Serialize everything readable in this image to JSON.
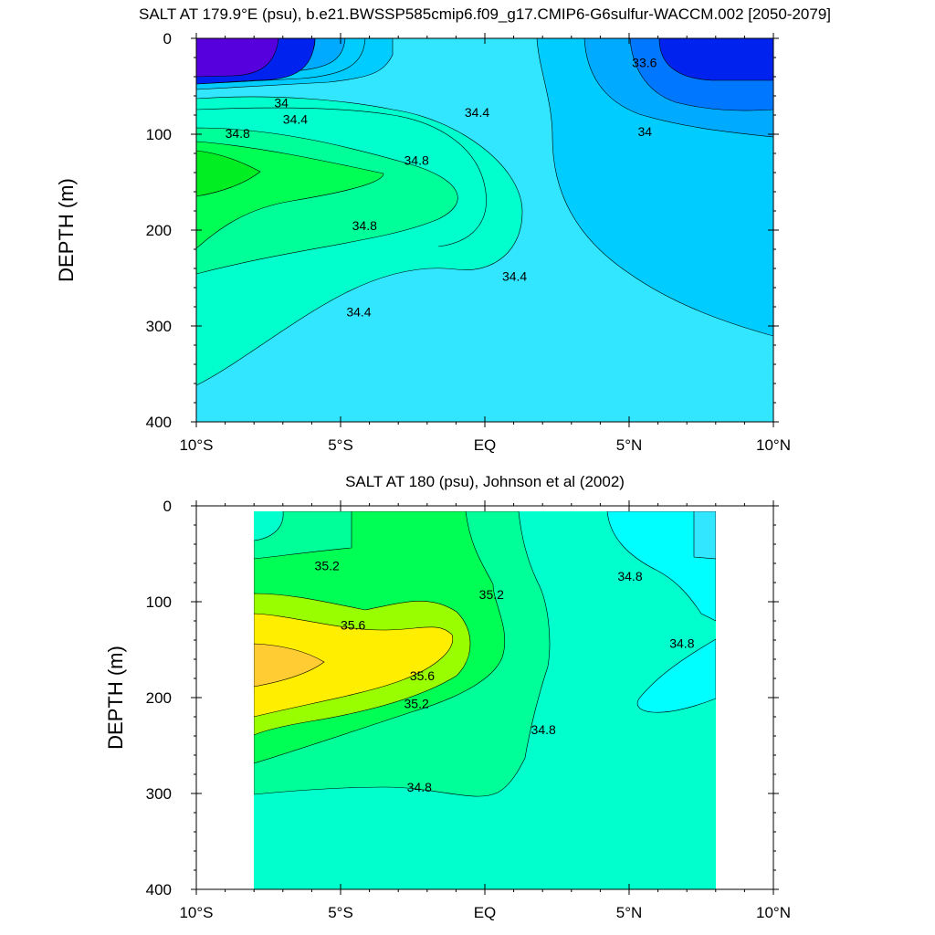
{
  "chart_data": [
    {
      "type": "contour",
      "title": "SALT AT 179.9°E (psu), b.e21.BWSSP585cmip6.f09_g17.CMIP6-G6sulfur-WACCM.002 [2050-2079]",
      "xlabel": "",
      "ylabel": "DEPTH (m)",
      "xlim": [
        -10,
        10
      ],
      "ylim": [
        400,
        0
      ],
      "x_ticks": [
        {
          "value": -10,
          "label": "10°S"
        },
        {
          "value": -5,
          "label": "5°S"
        },
        {
          "value": 0,
          "label": "EQ"
        },
        {
          "value": 5,
          "label": "5°N"
        },
        {
          "value": 10,
          "label": "10°N"
        }
      ],
      "y_ticks": [
        {
          "value": 0,
          "label": "0"
        },
        {
          "value": 100,
          "label": "100"
        },
        {
          "value": 200,
          "label": "200"
        },
        {
          "value": 300,
          "label": "300"
        },
        {
          "value": 400,
          "label": "400"
        }
      ],
      "contour_labels": [
        {
          "text": "34",
          "x": -7.3,
          "depth": 72
        },
        {
          "text": "34.4",
          "x": -7.0,
          "depth": 89
        },
        {
          "text": "34.8",
          "x": -9.0,
          "depth": 104
        },
        {
          "text": "34.8",
          "x": -2.8,
          "depth": 132
        },
        {
          "text": "34.8",
          "x": -4.6,
          "depth": 200
        },
        {
          "text": "34.4",
          "x": -4.8,
          "depth": 290
        },
        {
          "text": "34.4",
          "x": -0.7,
          "depth": 82
        },
        {
          "text": "34.4",
          "x": 0.6,
          "depth": 253
        },
        {
          "text": "33.6",
          "x": 5.1,
          "depth": 30
        },
        {
          "text": "34",
          "x": 5.3,
          "depth": 102
        }
      ]
    },
    {
      "type": "contour",
      "title": "SALT AT 180 (psu), Johnson et al (2002)",
      "xlabel": "",
      "ylabel": "DEPTH (m)",
      "xlim": [
        -10,
        10
      ],
      "ylim": [
        400,
        0
      ],
      "data_extent_x": [
        -8,
        8
      ],
      "data_extent_depth": [
        6,
        400
      ],
      "x_ticks": [
        {
          "value": -10,
          "label": "10°S"
        },
        {
          "value": -5,
          "label": "5°S"
        },
        {
          "value": 0,
          "label": "EQ"
        },
        {
          "value": 5,
          "label": "5°N"
        },
        {
          "value": 10,
          "label": "10°N"
        }
      ],
      "y_ticks": [
        {
          "value": 0,
          "label": "0"
        },
        {
          "value": 100,
          "label": "100"
        },
        {
          "value": 200,
          "label": "200"
        },
        {
          "value": 300,
          "label": "300"
        },
        {
          "value": 400,
          "label": "400"
        }
      ],
      "contour_labels": [
        {
          "text": "35.2",
          "x": -5.9,
          "depth": 67
        },
        {
          "text": "35.6",
          "x": -5.0,
          "depth": 129
        },
        {
          "text": "35.6",
          "x": -2.6,
          "depth": 182
        },
        {
          "text": "35.2",
          "x": -2.8,
          "depth": 211
        },
        {
          "text": "35.2",
          "x": -0.2,
          "depth": 97
        },
        {
          "text": "34.8",
          "x": 4.6,
          "depth": 78
        },
        {
          "text": "34.8",
          "x": 6.4,
          "depth": 148
        },
        {
          "text": "34.8",
          "x": 1.6,
          "depth": 238
        },
        {
          "text": "34.8",
          "x": -2.7,
          "depth": 298
        }
      ]
    }
  ]
}
